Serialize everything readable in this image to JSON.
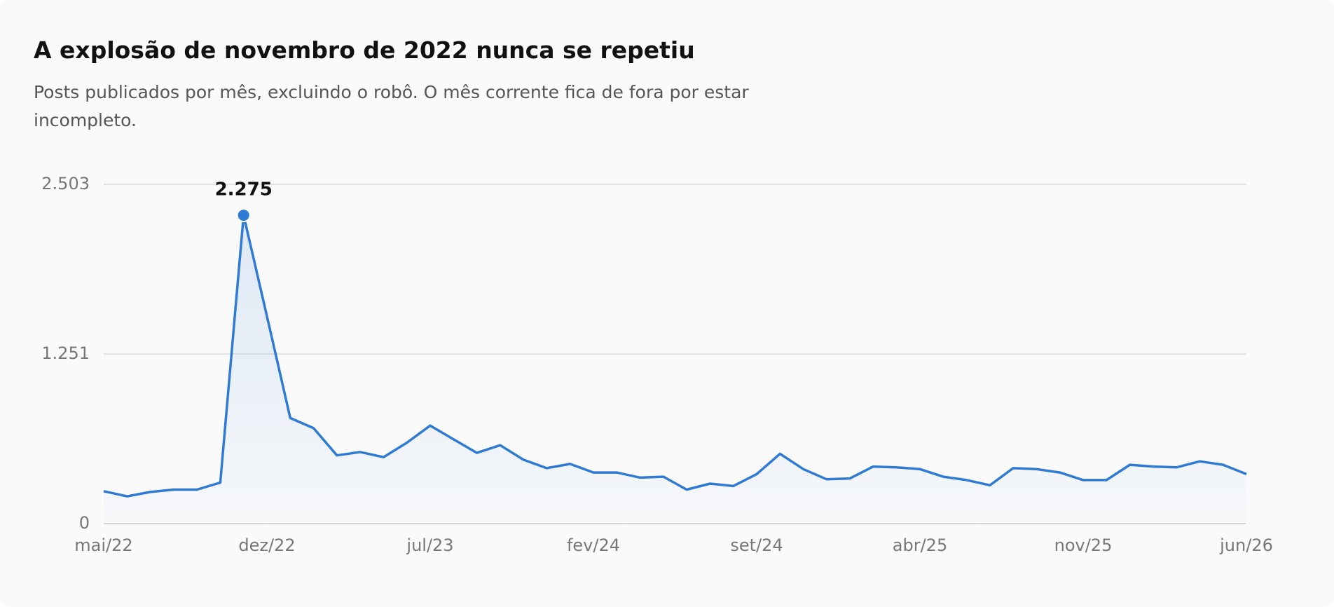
{
  "chart_data": {
    "type": "line",
    "title": "A explosão de novembro de 2022 nunca se repetiu",
    "subtitle": "Posts publicados por mês, excluindo o robô. O mês corrente fica de fora por estar incompleto.",
    "categories": [
      "mai/22",
      null,
      null,
      null,
      null,
      null,
      null,
      "dez/22",
      null,
      null,
      null,
      null,
      null,
      null,
      "jul/23",
      null,
      null,
      null,
      null,
      null,
      null,
      "fev/24",
      null,
      null,
      null,
      null,
      null,
      null,
      "set/24",
      null,
      null,
      null,
      null,
      null,
      null,
      "abr/25",
      null,
      null,
      null,
      null,
      null,
      null,
      "nov/25",
      null,
      null,
      null,
      null,
      null,
      null,
      "jun/26"
    ],
    "values": [
      239,
      201,
      233,
      251,
      251,
      302,
      2275,
      1530,
      779,
      704,
      503,
      528,
      490,
      597,
      723,
      622,
      522,
      578,
      471,
      409,
      440,
      377,
      377,
      339,
      346,
      251,
      295,
      277,
      365,
      515,
      402,
      327,
      333,
      421,
      415,
      402,
      346,
      321,
      283,
      409,
      402,
      377,
      321,
      321,
      434,
      421,
      415,
      459,
      434,
      365
    ],
    "value_labels": [
      null,
      null,
      null,
      null,
      null,
      null,
      "2.275",
      null,
      null,
      null,
      null,
      null,
      null,
      null,
      null,
      null,
      null,
      null,
      null,
      null,
      null,
      null,
      null,
      null,
      null,
      null,
      null,
      null,
      null,
      null,
      null,
      null,
      null,
      null,
      null,
      null,
      null,
      null,
      null,
      null,
      null,
      null,
      null,
      null,
      null,
      null,
      null,
      null,
      null,
      null
    ],
    "color": "#2f7ad3",
    "ylim": [
      0,
      2503
    ],
    "yticks": [
      0,
      {
        "value": 1251,
        "label": "1.251"
      },
      {
        "value": 2503,
        "label": "2.503"
      }
    ],
    "grid": true
  }
}
